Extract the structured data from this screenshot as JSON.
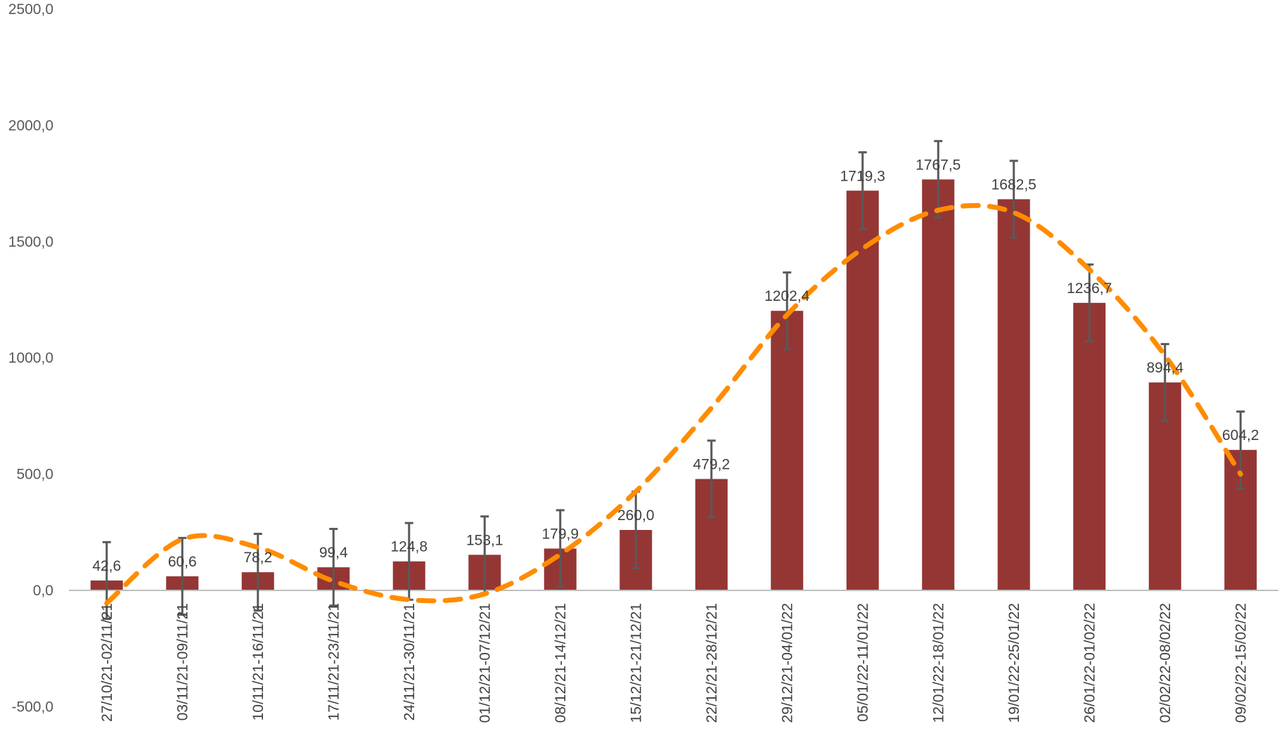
{
  "chart_data": {
    "type": "bar",
    "title": "",
    "xlabel": "",
    "ylabel": "",
    "ylim": [
      -500,
      2500
    ],
    "yticks": [
      -500,
      0,
      500,
      1000,
      1500,
      2000,
      2500
    ],
    "ytick_labels": [
      "-500,0",
      "0,0",
      "500,0",
      "1000,0",
      "1500,0",
      "2000,0",
      "2500,0"
    ],
    "grid": false,
    "legend": "none",
    "categories": [
      "27/10/21-02/11/21",
      "03/11/21-09/11/21",
      "10/11/21-16/11/21",
      "17/11/21-23/11/21",
      "24/11/21-30/11/21",
      "01/12/21-07/12/21",
      "08/12/21-14/12/21",
      "15/12/21-21/12/21",
      "22/12/21-28/12/21",
      "29/12/21-04/01/22",
      "05/01/22-11/01/22",
      "12/01/22-18/01/22",
      "19/01/22-25/01/22",
      "26/01/22-01/02/22",
      "02/02/22-08/02/22",
      "09/02/22-15/02/22"
    ],
    "values": [
      42.6,
      60.6,
      78.2,
      99.4,
      124.8,
      153.1,
      179.9,
      260.0,
      479.2,
      1202.4,
      1719.3,
      1767.5,
      1682.5,
      1236.7,
      894.4,
      604.2
    ],
    "value_labels": [
      "42,6",
      "60,6",
      "78,2",
      "99,4",
      "124,8",
      "153,1",
      "179,9",
      "260,0",
      "479,2",
      "1202,4",
      "1719,3",
      "1767,5",
      "1682,5",
      "1236,7",
      "894,4",
      "604,2"
    ],
    "error_bar": 165,
    "trendline": {
      "type": "polynomial",
      "style": "dashed",
      "values": [
        -55,
        220,
        185,
        40,
        -40,
        -15,
        155,
        425,
        785,
        1185,
        1470,
        1635,
        1625,
        1380,
        1010,
        500
      ]
    },
    "colors": {
      "bar": "#943634",
      "error_bar": "#595959",
      "trendline": "#FF8C00",
      "axis": "#BFBFBF"
    }
  }
}
